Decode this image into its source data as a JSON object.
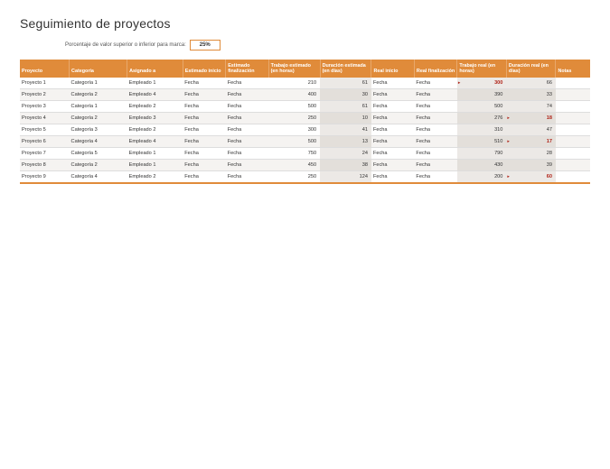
{
  "title": "Seguimiento de proyectos",
  "threshold": {
    "label": "Porcentaje de valor superior o inferior para marca:",
    "value": "25%"
  },
  "colors": {
    "header_bg": "#e08b3a",
    "header_text": "#ffffff",
    "row_alt_bg": "#f5f3f1",
    "shaded_col_bg": "#ece9e6",
    "flag_color": "#b02318",
    "border": "#dddddd",
    "bottom_border": "#e08b3a"
  },
  "columns": [
    "Proyecto",
    "Categoría",
    "Asignado a",
    "Estimado inicio",
    "Estimado finalización",
    "Trabajo estimado (en horas)",
    "Duración estimada (en días)",
    "Real inicio",
    "Real finalización",
    "Trabajo real (en horas)",
    "Duración real (en días)",
    "Notas"
  ],
  "rows": [
    {
      "proyecto": "Proyecto 1",
      "categoria": "Categoría 1",
      "asignado": "Empleado 1",
      "est_inicio": "Fecha",
      "est_fin": "Fecha",
      "trab_est": 210,
      "dur_est": 61,
      "real_inicio": "Fecha",
      "real_fin": "Fecha",
      "trab_real": 300,
      "trab_real_flag": true,
      "dur_real": 66,
      "dur_real_flag": false,
      "notas": ""
    },
    {
      "proyecto": "Proyecto 2",
      "categoria": "Categoría 2",
      "asignado": "Empleado 4",
      "est_inicio": "Fecha",
      "est_fin": "Fecha",
      "trab_est": 400,
      "dur_est": 30,
      "real_inicio": "Fecha",
      "real_fin": "Fecha",
      "trab_real": 390,
      "trab_real_flag": false,
      "dur_real": 33,
      "dur_real_flag": false,
      "notas": ""
    },
    {
      "proyecto": "Proyecto 3",
      "categoria": "Categoría 1",
      "asignado": "Empleado 2",
      "est_inicio": "Fecha",
      "est_fin": "Fecha",
      "trab_est": 500,
      "dur_est": 61,
      "real_inicio": "Fecha",
      "real_fin": "Fecha",
      "trab_real": 500,
      "trab_real_flag": false,
      "dur_real": 74,
      "dur_real_flag": false,
      "notas": ""
    },
    {
      "proyecto": "Proyecto 4",
      "categoria": "Categoría 2",
      "asignado": "Empleado 3",
      "est_inicio": "Fecha",
      "est_fin": "Fecha",
      "trab_est": 250,
      "dur_est": 10,
      "real_inicio": "Fecha",
      "real_fin": "Fecha",
      "trab_real": 276,
      "trab_real_flag": false,
      "dur_real": 18,
      "dur_real_flag": true,
      "notas": ""
    },
    {
      "proyecto": "Proyecto 5",
      "categoria": "Categoría 3",
      "asignado": "Empleado 2",
      "est_inicio": "Fecha",
      "est_fin": "Fecha",
      "trab_est": 300,
      "dur_est": 41,
      "real_inicio": "Fecha",
      "real_fin": "Fecha",
      "trab_real": 310,
      "trab_real_flag": false,
      "dur_real": 47,
      "dur_real_flag": false,
      "notas": ""
    },
    {
      "proyecto": "Proyecto 6",
      "categoria": "Categoría 4",
      "asignado": "Empleado 4",
      "est_inicio": "Fecha",
      "est_fin": "Fecha",
      "trab_est": 500,
      "dur_est": 13,
      "real_inicio": "Fecha",
      "real_fin": "Fecha",
      "trab_real": 510,
      "trab_real_flag": false,
      "dur_real": 17,
      "dur_real_flag": true,
      "notas": ""
    },
    {
      "proyecto": "Proyecto 7",
      "categoria": "Categoría 5",
      "asignado": "Empleado 1",
      "est_inicio": "Fecha",
      "est_fin": "Fecha",
      "trab_est": 750,
      "dur_est": 24,
      "real_inicio": "Fecha",
      "real_fin": "Fecha",
      "trab_real": 790,
      "trab_real_flag": false,
      "dur_real": 28,
      "dur_real_flag": false,
      "notas": ""
    },
    {
      "proyecto": "Proyecto 8",
      "categoria": "Categoría 2",
      "asignado": "Empleado 1",
      "est_inicio": "Fecha",
      "est_fin": "Fecha",
      "trab_est": 450,
      "dur_est": 38,
      "real_inicio": "Fecha",
      "real_fin": "Fecha",
      "trab_real": 430,
      "trab_real_flag": false,
      "dur_real": 39,
      "dur_real_flag": false,
      "notas": ""
    },
    {
      "proyecto": "Proyecto 9",
      "categoria": "Categoría 4",
      "asignado": "Empleado 2",
      "est_inicio": "Fecha",
      "est_fin": "Fecha",
      "trab_est": 250,
      "dur_est": 124,
      "real_inicio": "Fecha",
      "real_fin": "Fecha",
      "trab_real": 200,
      "trab_real_flag": false,
      "dur_real": 60,
      "dur_real_flag": true,
      "notas": ""
    }
  ]
}
